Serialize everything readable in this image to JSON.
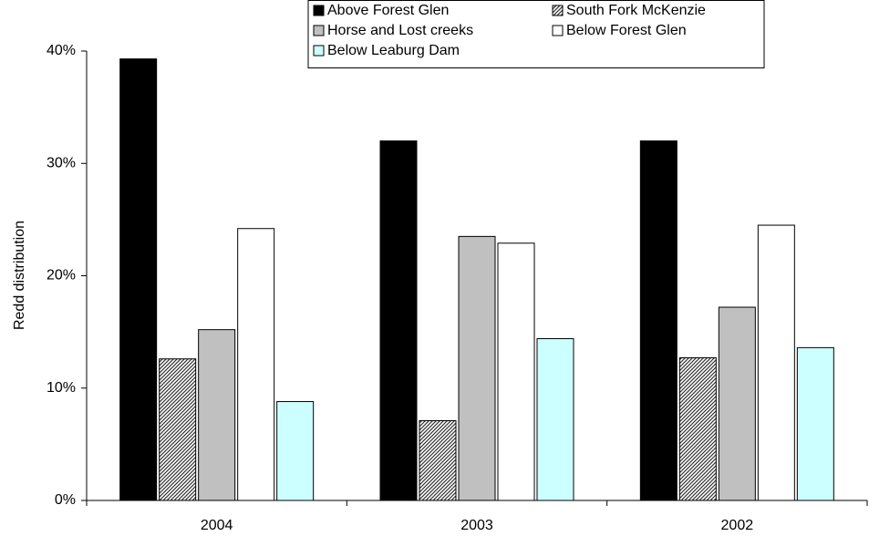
{
  "chart_data": {
    "type": "bar",
    "y_label": "Redd distribution",
    "categories": [
      "2004",
      "2003",
      "2002"
    ],
    "series": [
      {
        "name": "Above Forest Glen",
        "color": "#000000",
        "values": [
          39.3,
          32.0,
          32.0
        ]
      },
      {
        "name": "South Fork McKenzie",
        "color": "#808080",
        "pattern": "diagonal-hatch",
        "values": [
          12.6,
          7.1,
          12.7
        ]
      },
      {
        "name": "Horse and Lost creeks",
        "color": "#c0c0c0",
        "values": [
          15.2,
          23.5,
          17.2
        ]
      },
      {
        "name": "Below Forest Glen",
        "color": "#ffffff",
        "values": [
          24.2,
          22.9,
          24.5
        ]
      },
      {
        "name": "Below Leaburg Dam",
        "color": "#ccffff",
        "values": [
          8.8,
          14.4,
          13.6
        ]
      }
    ],
    "ylim": [
      0,
      40
    ],
    "yticks": [
      {
        "value": 0,
        "label": "0%"
      },
      {
        "value": 10,
        "label": "10%"
      },
      {
        "value": 20,
        "label": "20%"
      },
      {
        "value": 30,
        "label": "30%"
      },
      {
        "value": 40,
        "label": "40%"
      }
    ],
    "grid": false,
    "legend": "top"
  }
}
